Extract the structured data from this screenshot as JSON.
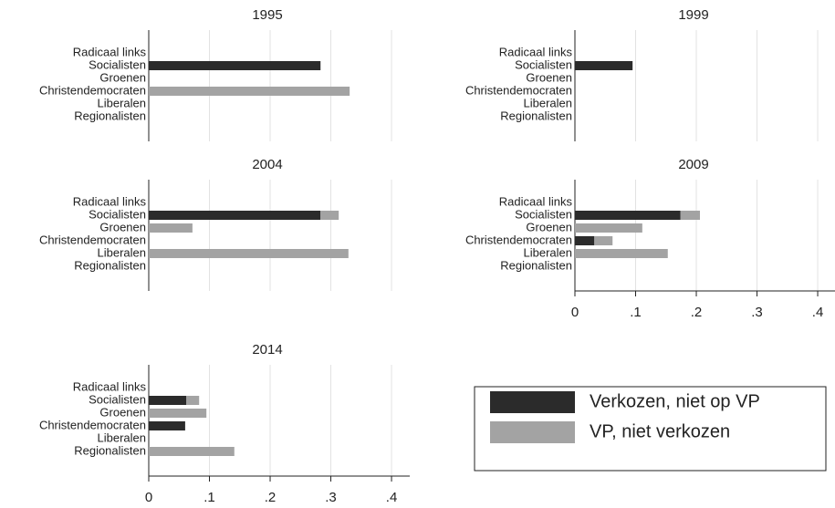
{
  "chart_data": [
    {
      "type": "bar",
      "title": "1995",
      "categories": [
        "Radicaal links",
        "Socialisten",
        "Groenen",
        "Christendemocraten",
        "Liberalen",
        "Regionalisten"
      ],
      "series": [
        {
          "name": "Verkozen, niet op VP",
          "color": "#2b2b2b",
          "values": [
            0,
            0.283,
            0,
            0,
            0,
            0
          ]
        },
        {
          "name": "VP, niet verkozen",
          "color": "#a3a3a3",
          "values": [
            0,
            0,
            0,
            0.331,
            0,
            0
          ]
        }
      ],
      "xlim": [
        0,
        0.43
      ],
      "xticks": [
        0,
        {
          "value": 0.1,
          "label": ".1"
        },
        {
          "value": 0.2,
          "label": ".2"
        },
        {
          "value": 0.3,
          "label": ".3"
        },
        {
          "value": 0.4,
          "label": ".4"
        }
      ],
      "grid": true,
      "show_xaxis": false
    },
    {
      "type": "bar",
      "title": "1999",
      "categories": [
        "Radicaal links",
        "Socialisten",
        "Groenen",
        "Christendemocraten",
        "Liberalen",
        "Regionalisten"
      ],
      "series": [
        {
          "name": "Verkozen, niet op VP",
          "color": "#2b2b2b",
          "values": [
            0,
            0.095,
            0,
            0,
            0,
            0
          ]
        },
        {
          "name": "VP, niet verkozen",
          "color": "#a3a3a3",
          "values": [
            0,
            0,
            0,
            0,
            0,
            0
          ]
        }
      ],
      "xlim": [
        0,
        0.43
      ],
      "xticks": [
        0,
        {
          "value": 0.1,
          "label": ".1"
        },
        {
          "value": 0.2,
          "label": ".2"
        },
        {
          "value": 0.3,
          "label": ".3"
        },
        {
          "value": 0.4,
          "label": ".4"
        }
      ],
      "grid": true,
      "show_xaxis": false
    },
    {
      "type": "bar",
      "title": "2004",
      "categories": [
        "Radicaal links",
        "Socialisten",
        "Groenen",
        "Christendemocraten",
        "Liberalen",
        "Regionalisten"
      ],
      "series": [
        {
          "name": "Verkozen, niet op VP",
          "color": "#2b2b2b",
          "values": [
            0,
            0.283,
            0,
            0,
            0,
            0
          ]
        },
        {
          "name": "VP, niet verkozen",
          "color": "#a3a3a3",
          "values": [
            0,
            0.03,
            0.072,
            0,
            0.329,
            0
          ]
        }
      ],
      "xlim": [
        0,
        0.43
      ],
      "xticks": [
        0,
        {
          "value": 0.1,
          "label": ".1"
        },
        {
          "value": 0.2,
          "label": ".2"
        },
        {
          "value": 0.3,
          "label": ".3"
        },
        {
          "value": 0.4,
          "label": ".4"
        }
      ],
      "grid": true,
      "show_xaxis": false
    },
    {
      "type": "bar",
      "title": "2009",
      "categories": [
        "Radicaal links",
        "Socialisten",
        "Groenen",
        "Christendemocraten",
        "Liberalen",
        "Regionalisten"
      ],
      "series": [
        {
          "name": "Verkozen, niet op VP",
          "color": "#2b2b2b",
          "values": [
            0,
            0.174,
            0,
            0.032,
            0,
            0
          ]
        },
        {
          "name": "VP, niet verkozen",
          "color": "#a3a3a3",
          "values": [
            0,
            0.032,
            0.111,
            0.03,
            0.153,
            0
          ]
        }
      ],
      "xlim": [
        0,
        0.43
      ],
      "xticks": [
        0,
        {
          "value": 0.1,
          "label": ".1"
        },
        {
          "value": 0.2,
          "label": ".2"
        },
        {
          "value": 0.3,
          "label": ".3"
        },
        {
          "value": 0.4,
          "label": ".4"
        }
      ],
      "grid": true,
      "show_xaxis": true
    },
    {
      "type": "bar",
      "title": "2014",
      "categories": [
        "Radicaal links",
        "Socialisten",
        "Groenen",
        "Christendemocraten",
        "Liberalen",
        "Regionalisten"
      ],
      "series": [
        {
          "name": "Verkozen, niet op VP",
          "color": "#2b2b2b",
          "values": [
            0,
            0.062,
            0,
            0.06,
            0,
            0
          ]
        },
        {
          "name": "VP, niet verkozen",
          "color": "#a3a3a3",
          "values": [
            0,
            0.021,
            0.095,
            0,
            0,
            0.141
          ]
        }
      ],
      "xlim": [
        0,
        0.43
      ],
      "xticks": [
        0,
        {
          "value": 0.1,
          "label": ".1"
        },
        {
          "value": 0.2,
          "label": ".2"
        },
        {
          "value": 0.3,
          "label": ".3"
        },
        {
          "value": 0.4,
          "label": ".4"
        }
      ],
      "grid": true,
      "show_xaxis": true
    }
  ]
}
